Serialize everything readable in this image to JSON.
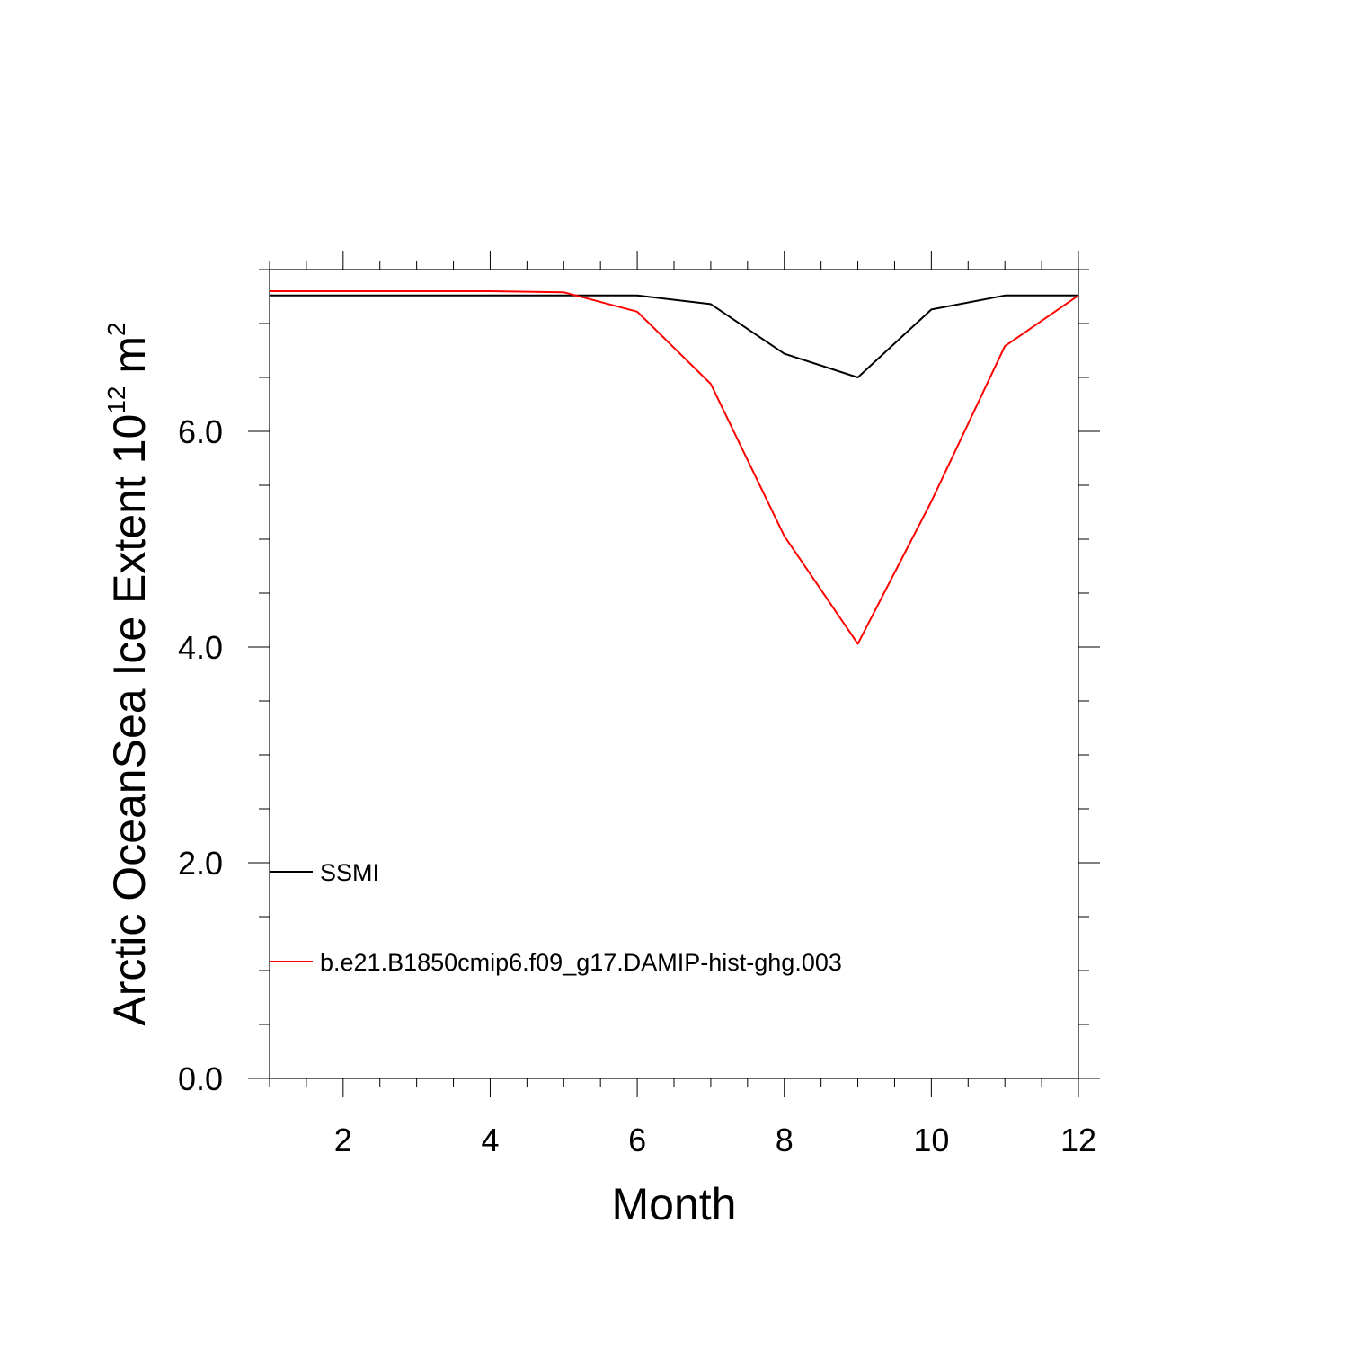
{
  "chart_data": {
    "type": "line",
    "xlabel": "Month",
    "ylabel": {
      "prefix": "Arctic OceanSea Ice Extent 10",
      "exponent": "12",
      "unit": " m",
      "unit_exponent": "2"
    },
    "xlim": [
      1,
      12
    ],
    "ylim": [
      0,
      7.5
    ],
    "x_ticks": [
      2,
      4,
      6,
      8,
      10,
      12
    ],
    "x_tick_labels": [
      "2",
      "4",
      "6",
      "8",
      "10",
      "12"
    ],
    "y_ticks": [
      0,
      2,
      4,
      6
    ],
    "y_tick_labels": [
      "0.0",
      "2.0",
      "4.0",
      "6.0"
    ],
    "grid": false,
    "legend_position": "lower-left",
    "x": [
      1,
      2,
      3,
      4,
      5,
      6,
      7,
      8,
      9,
      10,
      11,
      12
    ],
    "series": [
      {
        "name": "SSMI",
        "color": "#000000",
        "values": [
          7.26,
          7.26,
          7.26,
          7.26,
          7.26,
          7.26,
          7.18,
          6.72,
          6.5,
          7.13,
          7.26,
          7.26
        ]
      },
      {
        "name": "b.e21.B1850cmip6.f09_g17.DAMIP-hist-ghg.003",
        "color": "#ff0000",
        "values": [
          7.3,
          7.3,
          7.3,
          7.3,
          7.29,
          7.11,
          6.44,
          5.03,
          4.03,
          5.35,
          6.79,
          7.26
        ]
      }
    ]
  }
}
